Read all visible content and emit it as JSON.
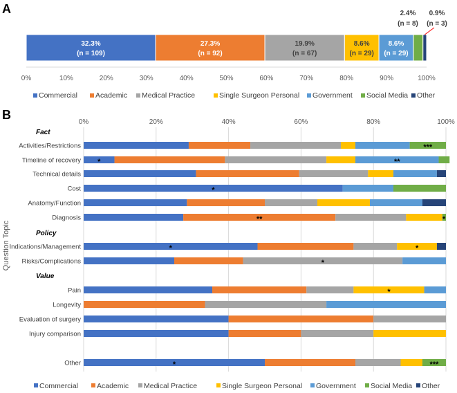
{
  "colors": {
    "Commercial": "#4472C4",
    "Academic": "#ED7D31",
    "Medical Practice": "#A5A5A5",
    "Single Surgeon Personal": "#FFC000",
    "Government": "#5B9BD5",
    "Social Media": "#70AD47",
    "Other": "#264478"
  },
  "chart_data": [
    {
      "panel": "A",
      "type": "bar",
      "orientation": "horizontal-stacked",
      "xlim": [
        0,
        100
      ],
      "ticks": [
        "0%",
        "10%",
        "20%",
        "30%",
        "40%",
        "50%",
        "60%",
        "70%",
        "80%",
        "90%",
        "100%"
      ],
      "legend_position": "bottom",
      "series": [
        {
          "name": "Commercial",
          "values": [
            32.3
          ],
          "pct_label": "32.3%",
          "n_label": "(n = 109)"
        },
        {
          "name": "Academic",
          "values": [
            27.3
          ],
          "pct_label": "27.3%",
          "n_label": "(n = 92)"
        },
        {
          "name": "Medical Practice",
          "values": [
            19.9
          ],
          "pct_label": "19.9%",
          "n_label": "(n = 67)"
        },
        {
          "name": "Single Surgeon Personal",
          "values": [
            8.6
          ],
          "pct_label": "8.6%",
          "n_label": "(n = 29)"
        },
        {
          "name": "Government",
          "values": [
            8.6
          ],
          "pct_label": "8.6%",
          "n_label": "(n = 29)"
        },
        {
          "name": "Social Media",
          "values": [
            2.4
          ],
          "pct_label": "2.4%",
          "n_label": "(n = 8)"
        },
        {
          "name": "Other",
          "values": [
            0.9
          ],
          "pct_label": "0.9%",
          "n_label": "(n = 3)"
        }
      ]
    },
    {
      "panel": "B",
      "type": "bar",
      "orientation": "horizontal-stacked-100",
      "xlim": [
        0,
        100
      ],
      "ticks": [
        "0%",
        "20%",
        "40%",
        "60%",
        "80%",
        "100%"
      ],
      "ylabel": "Question Topic",
      "legend_position": "bottom",
      "series_names": [
        "Commercial",
        "Academic",
        "Medical Practice",
        "Single Surgeon Personal",
        "Government",
        "Social Media",
        "Other"
      ],
      "groups": [
        {
          "label": "Fact",
          "rows": [
            {
              "label": "Activities/Restrictions",
              "values": [
                29,
                17,
                25,
                4,
                15,
                10,
                0
              ],
              "annotations": [
                {
                  "series": "Social Media",
                  "text": "***"
                }
              ]
            },
            {
              "label": "Timeline of recovery",
              "values": [
                8.5,
                30.5,
                28,
                8,
                23,
                3,
                0
              ],
              "annotations": [
                {
                  "series": "Commercial",
                  "text": "*"
                },
                {
                  "series": "Government",
                  "text": "**"
                }
              ]
            },
            {
              "label": "Technical details",
              "values": [
                31,
                28.5,
                19,
                7,
                12,
                0,
                2.5
              ],
              "annotations": []
            },
            {
              "label": "Cost",
              "values": [
                71.5,
                0,
                0,
                0,
                14,
                14.5,
                0
              ],
              "annotations": [
                {
                  "series": "Commercial",
                  "text": "*"
                }
              ]
            },
            {
              "label": "Anatomy/Function",
              "values": [
                28.5,
                21.5,
                14.5,
                14.5,
                14.5,
                0,
                6.5
              ],
              "annotations": []
            },
            {
              "label": "Diagnosis",
              "values": [
                27.5,
                42,
                19.5,
                10,
                0,
                1,
                0
              ],
              "annotations": [
                {
                  "series": "Academic",
                  "text": "**"
                },
                {
                  "series": "Social Media",
                  "text": "*"
                }
              ]
            }
          ]
        },
        {
          "label": "Policy",
          "rows": [
            {
              "label": "Indications/Management",
              "values": [
                48,
                26.5,
                12,
                11,
                0,
                0,
                2.5
              ],
              "annotations": [
                {
                  "series": "Commercial",
                  "text": "*"
                },
                {
                  "series": "Single Surgeon Personal",
                  "text": "*"
                }
              ]
            },
            {
              "label": "Risks/Complications",
              "values": [
                25,
                19,
                44,
                0,
                12,
                0,
                0
              ],
              "annotations": [
                {
                  "series": "Medical Practice",
                  "text": "*"
                }
              ]
            }
          ]
        },
        {
          "label": "Value",
          "rows": [
            {
              "label": "Pain",
              "values": [
                35.5,
                26,
                13,
                19.5,
                6,
                0,
                0
              ],
              "annotations": [
                {
                  "series": "Single Surgeon Personal",
                  "text": "*"
                }
              ]
            },
            {
              "label": "Longevity",
              "values": [
                0,
                33.5,
                33.5,
                0,
                33,
                0,
                0
              ],
              "annotations": []
            },
            {
              "label": "Evaluation of surgery",
              "values": [
                40,
                40,
                20,
                0,
                0,
                0,
                0
              ],
              "annotations": []
            },
            {
              "label": "Injury comparison",
              "values": [
                40,
                20,
                20,
                20,
                0,
                0,
                0
              ],
              "annotations": []
            }
          ]
        },
        {
          "label": "",
          "rows": [
            {
              "label": "Other",
              "values": [
                50,
                25,
                12.5,
                6,
                0,
                6.5,
                0
              ],
              "annotations": [
                {
                  "series": "Commercial",
                  "text": "*"
                },
                {
                  "series": "Social Media",
                  "text": "***"
                }
              ]
            }
          ]
        }
      ]
    }
  ],
  "labels": {
    "panel_a": "A",
    "panel_b": "B"
  }
}
